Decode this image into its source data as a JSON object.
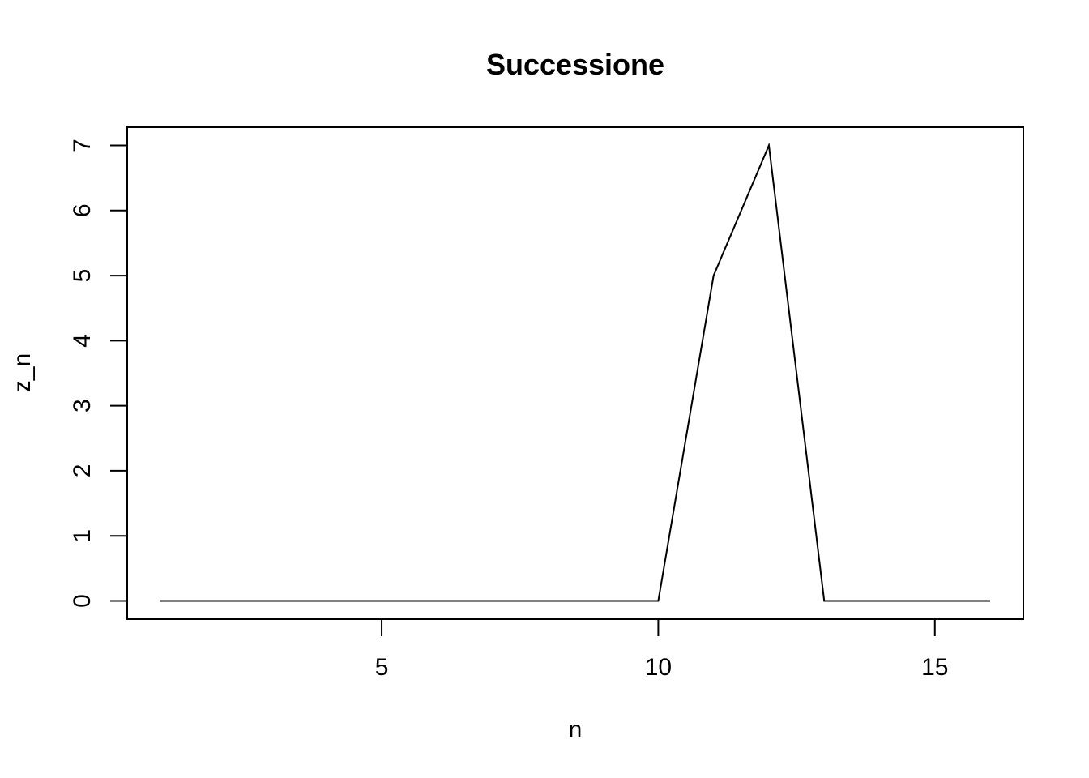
{
  "chart_data": {
    "type": "line",
    "title": "Successione",
    "xlabel": "n",
    "ylabel": "z_n",
    "x": [
      1,
      2,
      3,
      4,
      5,
      6,
      7,
      8,
      9,
      10,
      11,
      12,
      13,
      14,
      15,
      16
    ],
    "series": [
      {
        "values": [
          0,
          0,
          0,
          0,
          0,
          0,
          0,
          0,
          0,
          0,
          5,
          7,
          0,
          0,
          0,
          0
        ]
      }
    ],
    "xlim": [
      0.4,
      16.6
    ],
    "ylim": [
      -0.28,
      7.28
    ],
    "xticks": [
      5,
      10,
      15
    ],
    "yticks": [
      0,
      1,
      2,
      3,
      4,
      5,
      6,
      7
    ],
    "grid": false,
    "legend": "none",
    "line_color": "#000000"
  }
}
